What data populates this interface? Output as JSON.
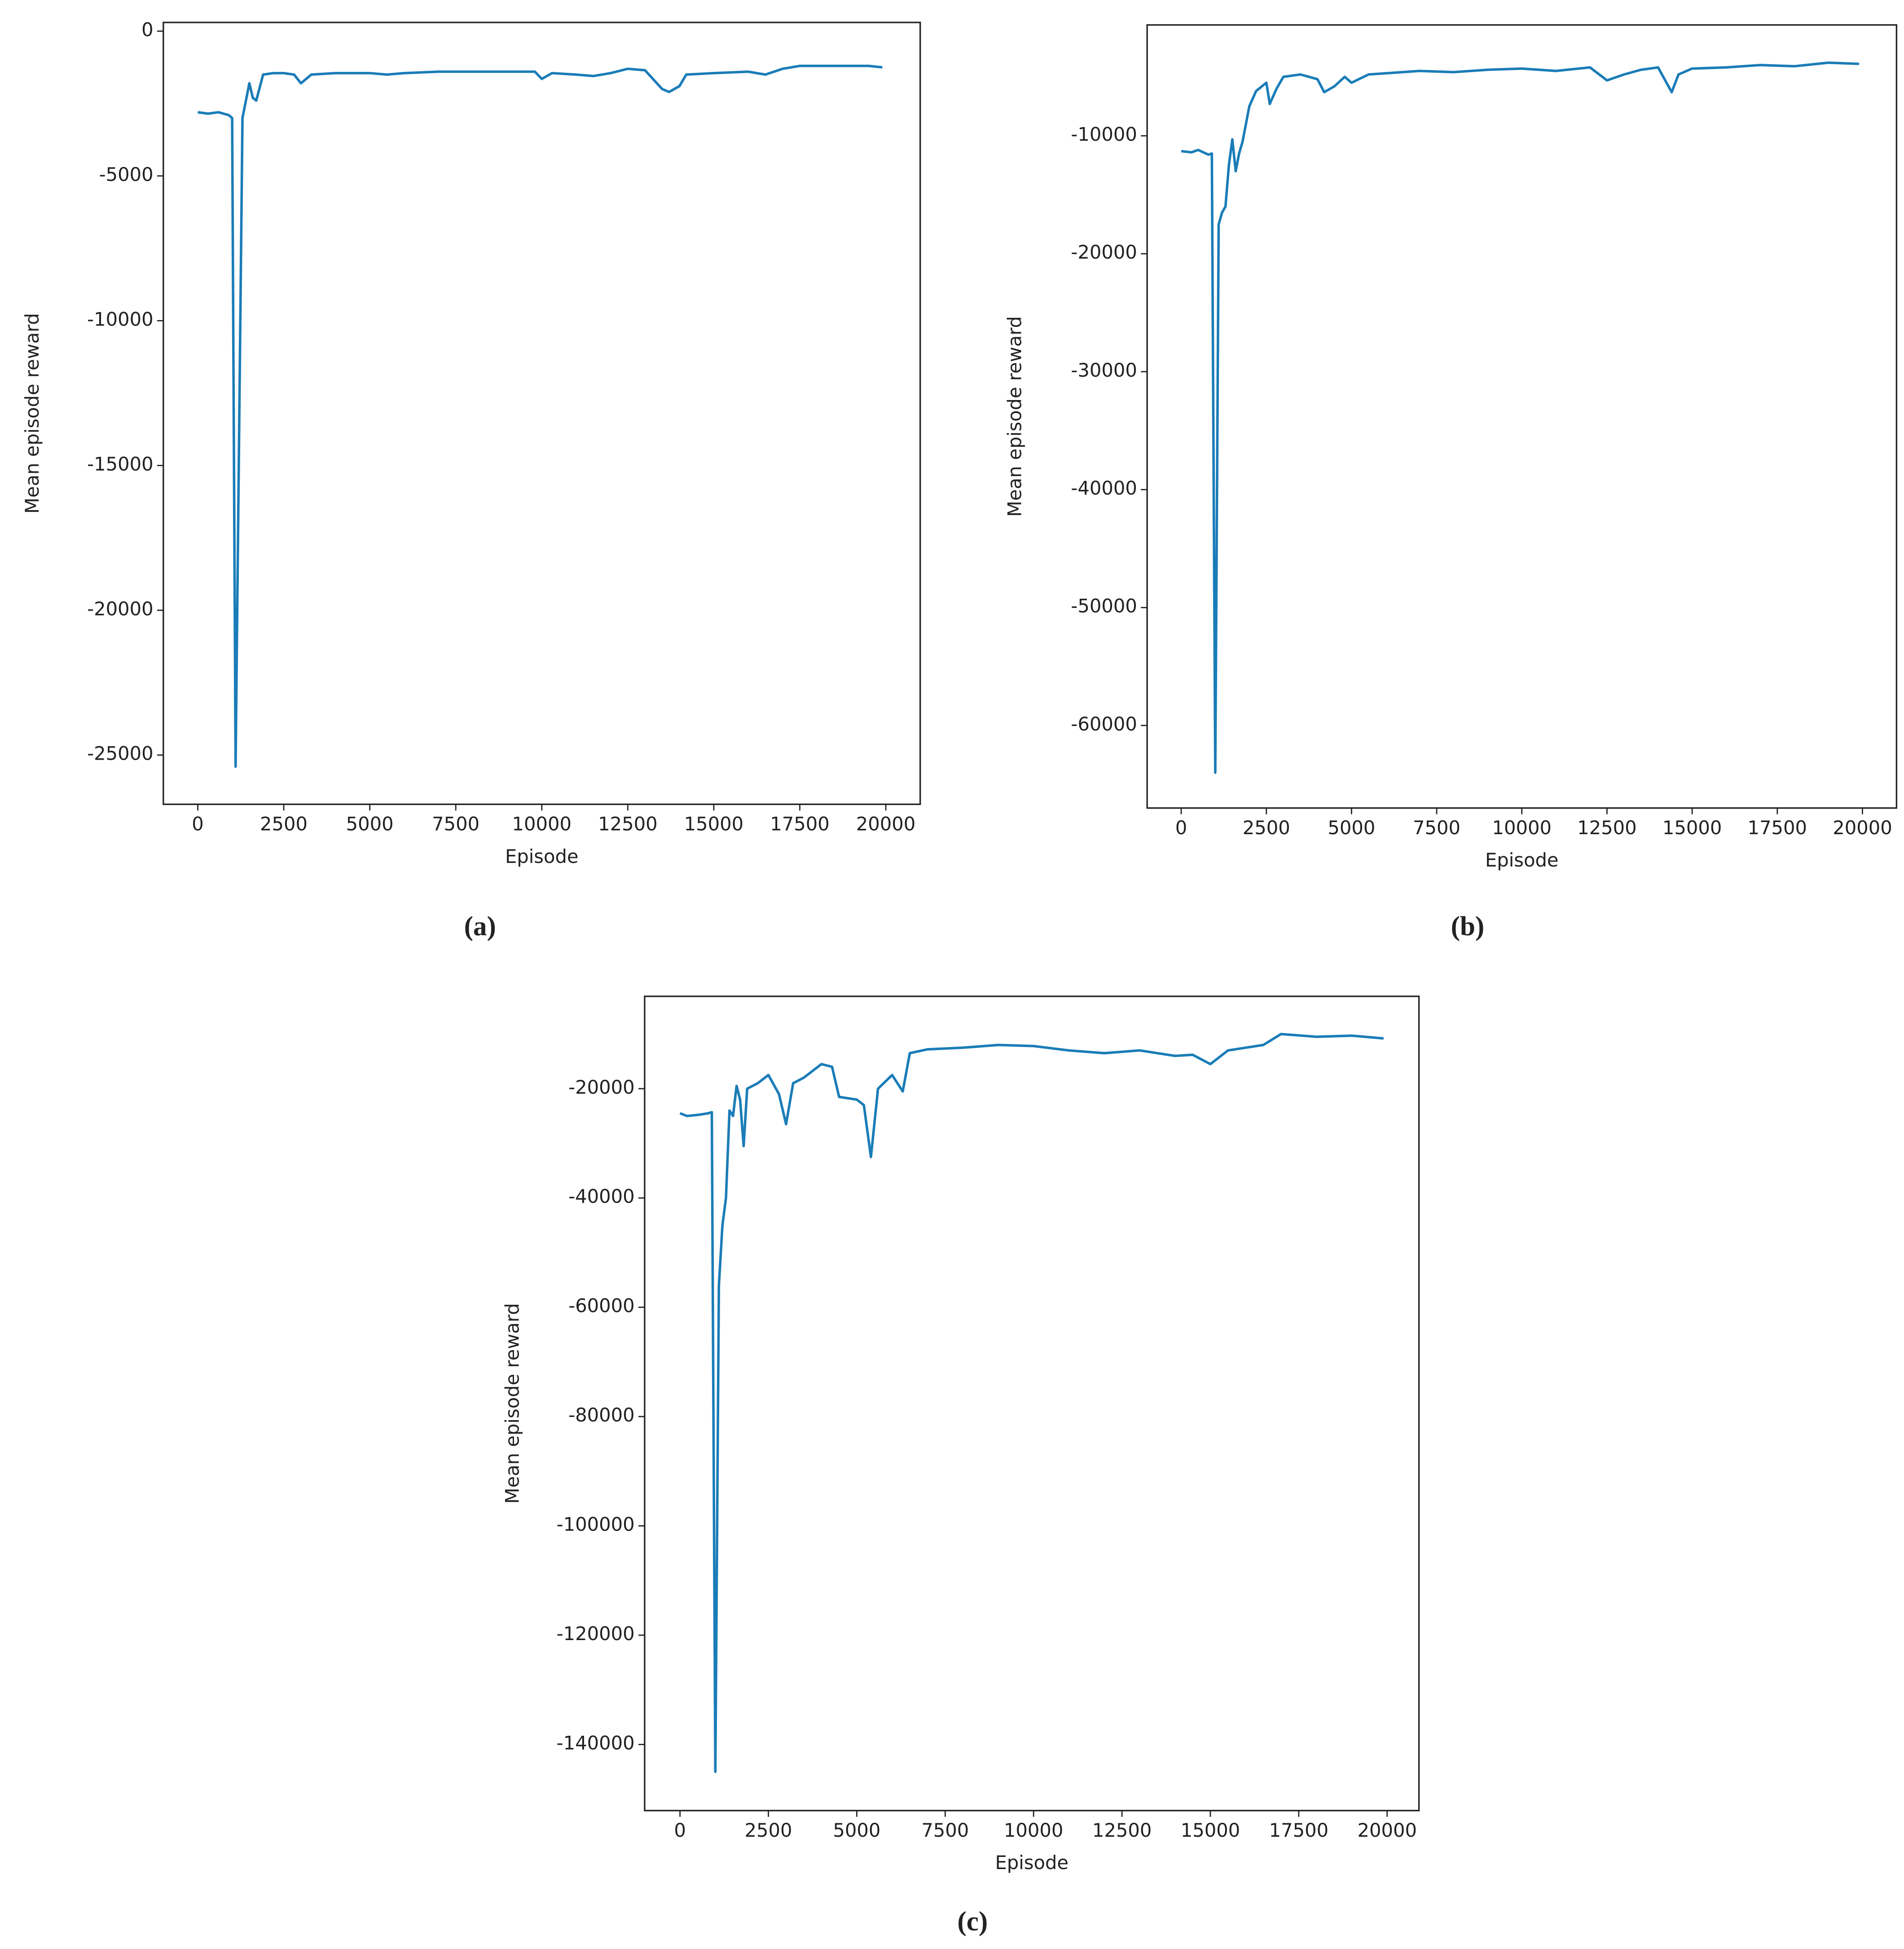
{
  "chart_data": [
    {
      "type": "line",
      "caption": "(a)",
      "x_label": "Episode",
      "y_label": "Mean episode reward",
      "xlim": [
        -1000,
        21000
      ],
      "ylim": [
        -26700,
        300
      ],
      "xticks": [
        0,
        2500,
        5000,
        7500,
        10000,
        12500,
        15000,
        17500,
        20000
      ],
      "yticks": [
        0,
        -5000,
        -10000,
        -15000,
        -20000,
        -25000
      ],
      "series": [
        {
          "color": "#1a7cb8",
          "x": [
            0,
            300,
            600,
            900,
            1000,
            1100,
            1300,
            1500,
            1600,
            1700,
            1900,
            2200,
            2500,
            2800,
            3000,
            3300,
            4000,
            5000,
            5500,
            6000,
            7000,
            8000,
            9000,
            9800,
            10000,
            10300,
            11000,
            11500,
            12000,
            12500,
            13000,
            13500,
            13700,
            14000,
            14200,
            15000,
            16000,
            16500,
            17000,
            17500,
            18500,
            19500,
            19900
          ],
          "values": [
            -2800,
            -2850,
            -2800,
            -2900,
            -3000,
            -25400,
            -3000,
            -1800,
            -2300,
            -2400,
            -1500,
            -1450,
            -1450,
            -1500,
            -1800,
            -1500,
            -1450,
            -1450,
            -1500,
            -1450,
            -1400,
            -1400,
            -1400,
            -1400,
            -1650,
            -1450,
            -1500,
            -1550,
            -1450,
            -1300,
            -1350,
            -2000,
            -2100,
            -1900,
            -1500,
            -1450,
            -1400,
            -1500,
            -1300,
            -1200,
            -1200,
            -1200,
            -1250
          ]
        }
      ]
    },
    {
      "type": "line",
      "caption": "(b)",
      "x_label": "Episode",
      "y_label": "Mean episode reward",
      "xlim": [
        -1000,
        21000
      ],
      "ylim": [
        -67000,
        -600
      ],
      "xticks": [
        0,
        2500,
        5000,
        7500,
        10000,
        12500,
        15000,
        17500,
        20000
      ],
      "yticks": [
        -10000,
        -20000,
        -30000,
        -40000,
        -50000,
        -60000
      ],
      "series": [
        {
          "color": "#1a7cb8",
          "x": [
            0,
            300,
            500,
            800,
            900,
            1000,
            1100,
            1200,
            1300,
            1400,
            1500,
            1600,
            1700,
            1800,
            2000,
            2200,
            2500,
            2600,
            2800,
            3000,
            3500,
            4000,
            4200,
            4500,
            4800,
            5000,
            5500,
            6000,
            7000,
            8000,
            9000,
            10000,
            11000,
            12000,
            12500,
            13000,
            13500,
            14000,
            14400,
            14600,
            15000,
            16000,
            17000,
            18000,
            19000,
            19900
          ],
          "values": [
            -11300,
            -11400,
            -11200,
            -11600,
            -11500,
            -64000,
            -17500,
            -16500,
            -16000,
            -12500,
            -10300,
            -13000,
            -11500,
            -10500,
            -7500,
            -6200,
            -5500,
            -7300,
            -6000,
            -5000,
            -4800,
            -5200,
            -6300,
            -5800,
            -5000,
            -5500,
            -4800,
            -4700,
            -4500,
            -4600,
            -4400,
            -4300,
            -4500,
            -4200,
            -5300,
            -4800,
            -4400,
            -4200,
            -6300,
            -4800,
            -4300,
            -4200,
            -4000,
            -4100,
            -3800,
            -3900
          ]
        }
      ]
    },
    {
      "type": "line",
      "caption": "(c)",
      "x_label": "Episode",
      "y_label": "Mean episode reward",
      "xlim": [
        -1000,
        20900
      ],
      "ylim": [
        -152100,
        -3100
      ],
      "xticks": [
        0,
        2500,
        5000,
        7500,
        10000,
        12500,
        15000,
        17500,
        20000
      ],
      "yticks": [
        -20000,
        -40000,
        -60000,
        -80000,
        -100000,
        -120000,
        -140000
      ],
      "series": [
        {
          "color": "#1a7cb8",
          "x": [
            0,
            200,
            500,
            800,
            900,
            1000,
            1100,
            1200,
            1300,
            1400,
            1500,
            1600,
            1700,
            1800,
            1900,
            2200,
            2500,
            2800,
            3000,
            3200,
            3500,
            4000,
            4300,
            4500,
            5000,
            5200,
            5400,
            5600,
            6000,
            6300,
            6500,
            7000,
            8000,
            9000,
            10000,
            11000,
            12000,
            13000,
            14000,
            14500,
            15000,
            15500,
            16000,
            16500,
            17000,
            18000,
            19000,
            19900
          ],
          "values": [
            -24500,
            -25000,
            -24800,
            -24500,
            -24300,
            -145000,
            -56000,
            -45000,
            -40000,
            -24000,
            -25000,
            -19500,
            -22000,
            -30500,
            -20000,
            -19000,
            -17500,
            -21000,
            -26500,
            -19000,
            -18000,
            -15500,
            -16000,
            -21500,
            -22000,
            -23000,
            -32500,
            -20000,
            -17500,
            -20500,
            -13500,
            -12800,
            -12500,
            -12000,
            -12200,
            -13000,
            -13500,
            -13000,
            -14000,
            -13800,
            -15500,
            -13000,
            -12500,
            -12000,
            -10000,
            -10500,
            -10300,
            -10800
          ]
        }
      ]
    }
  ]
}
